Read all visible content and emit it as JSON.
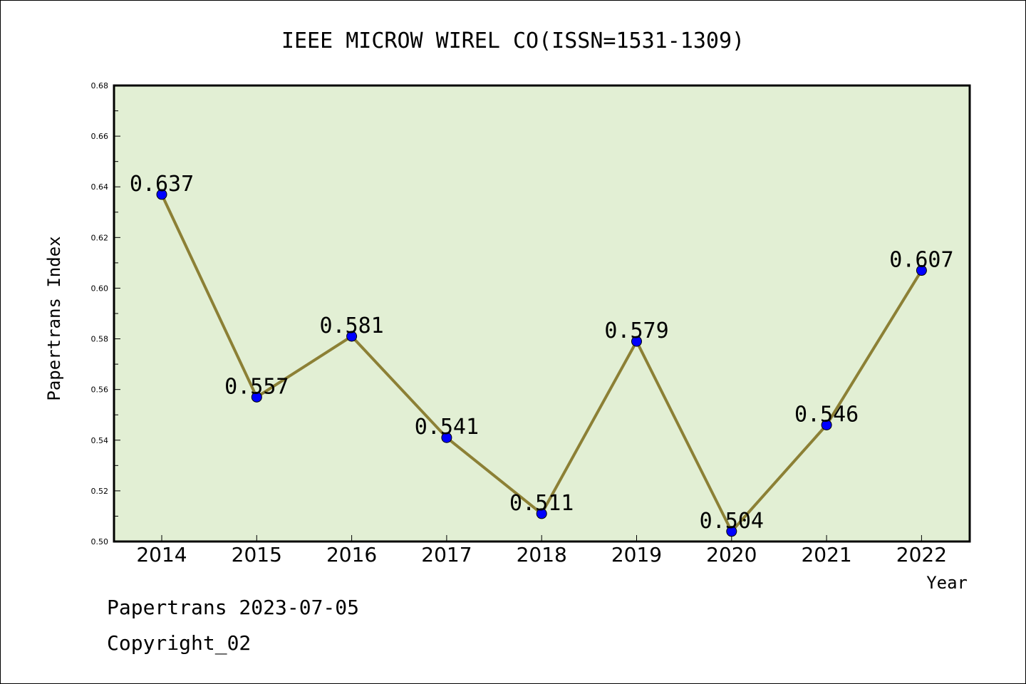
{
  "chart_data": {
    "type": "line",
    "title": "IEEE MICROW WIREL CO(ISSN=1531-1309)",
    "xlabel": "Year",
    "ylabel": "Papertrans Index",
    "categories": [
      "2014",
      "2015",
      "2016",
      "2017",
      "2018",
      "2019",
      "2020",
      "2021",
      "2022"
    ],
    "values": [
      0.637,
      0.557,
      0.581,
      0.541,
      0.511,
      0.579,
      0.504,
      0.546,
      0.607
    ],
    "data_labels": [
      "0.637",
      "0.557",
      "0.581",
      "0.541",
      "0.511",
      "0.579",
      "0.504",
      "0.546",
      "0.607"
    ],
    "ylim": [
      0.5,
      0.68
    ],
    "yticks": [
      "0.50",
      "0.52",
      "0.54",
      "0.56",
      "0.58",
      "0.60",
      "0.62",
      "0.64",
      "0.66",
      "0.68"
    ],
    "grid": false,
    "colors": {
      "plot_background": "#e2efd4",
      "line": "#8c8035",
      "marker": "#0000ff"
    }
  },
  "footer": {
    "line1": "Papertrans 2023-07-05",
    "line2": "Copyright_02"
  }
}
